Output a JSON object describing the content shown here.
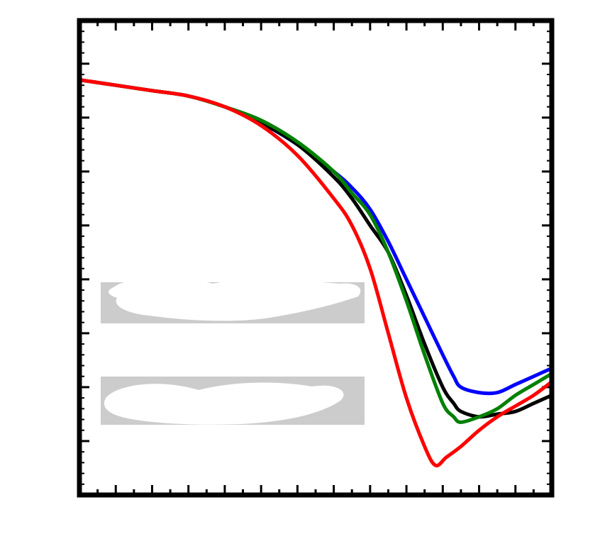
{
  "chart_data": {
    "type": "line",
    "title": "",
    "xlabel": "",
    "ylabel": "",
    "grid": false,
    "xlim": [
      0,
      13
    ],
    "ylim": [
      0,
      8.8
    ],
    "series": [
      {
        "color": "#0000ff",
        "x": [
          0,
          1,
          2,
          3,
          4,
          5,
          6,
          7,
          7.5,
          8,
          8.5,
          9,
          9.5,
          10,
          10.3,
          10.5,
          11,
          11.5,
          12,
          12.5,
          13
        ],
        "y": [
          7.7,
          7.6,
          7.5,
          7.4,
          7.2,
          6.9,
          6.5,
          6.0,
          5.7,
          5.3,
          4.7,
          4.0,
          3.3,
          2.6,
          2.2,
          2.0,
          1.9,
          1.9,
          2.05,
          2.2,
          2.35
        ]
      },
      {
        "color": "#000000",
        "x": [
          0,
          1,
          2,
          3,
          4,
          5,
          6,
          7,
          7.5,
          8,
          8.5,
          9,
          9.5,
          10,
          10.3,
          10.5,
          11,
          11.5,
          12,
          12.5,
          13
        ],
        "y": [
          7.7,
          7.6,
          7.5,
          7.4,
          7.2,
          6.9,
          6.5,
          5.9,
          5.5,
          5.0,
          4.5,
          3.7,
          2.8,
          2.0,
          1.7,
          1.55,
          1.45,
          1.5,
          1.55,
          1.7,
          1.85
        ]
      },
      {
        "color": "#008000",
        "x": [
          0,
          1,
          2,
          3,
          4,
          5,
          6,
          7,
          7.5,
          8,
          8.5,
          9,
          9.5,
          10,
          10.3,
          10.5,
          11,
          11.5,
          12,
          12.5,
          13
        ],
        "y": [
          7.7,
          7.6,
          7.5,
          7.4,
          7.2,
          6.95,
          6.55,
          6.0,
          5.6,
          5.2,
          4.5,
          3.6,
          2.6,
          1.7,
          1.45,
          1.35,
          1.45,
          1.6,
          1.85,
          2.05,
          2.25
        ]
      },
      {
        "color": "#ff0000",
        "x": [
          0,
          1,
          2,
          3,
          4,
          5,
          6,
          7,
          7.5,
          8,
          8.5,
          9,
          9.5,
          9.8,
          10.1,
          10.5,
          11,
          11.5,
          12,
          12.5,
          13
        ],
        "y": [
          7.7,
          7.6,
          7.5,
          7.4,
          7.2,
          6.85,
          6.3,
          5.5,
          5.0,
          4.2,
          3.0,
          1.8,
          0.9,
          0.55,
          0.7,
          0.9,
          1.2,
          1.45,
          1.65,
          1.85,
          2.1
        ]
      }
    ]
  }
}
